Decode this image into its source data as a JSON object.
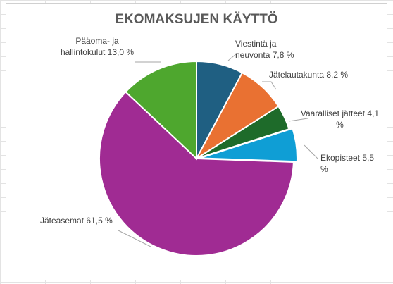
{
  "chart_data": {
    "type": "pie",
    "title": "EKOMAKSUJEN KÄYTTÖ",
    "categories": [
      "Viestintä ja neuvonta",
      "Jätelautakunta",
      "Vaaralliset jätteet",
      "Ekopisteet",
      "Jäteasemat",
      "Pääoma- ja hallintokulut"
    ],
    "values": [
      7.8,
      8.2,
      4.1,
      5.5,
      61.5,
      13.0
    ],
    "value_labels": [
      "7,8 %",
      "8,2 %",
      "4,1 %",
      "5,5 %",
      "61,5 %",
      "13,0 %"
    ],
    "colors": [
      "#1f5f82",
      "#e97132",
      "#1e6b2a",
      "#0f9ed5",
      "#a02b93",
      "#4ea72e"
    ]
  }
}
